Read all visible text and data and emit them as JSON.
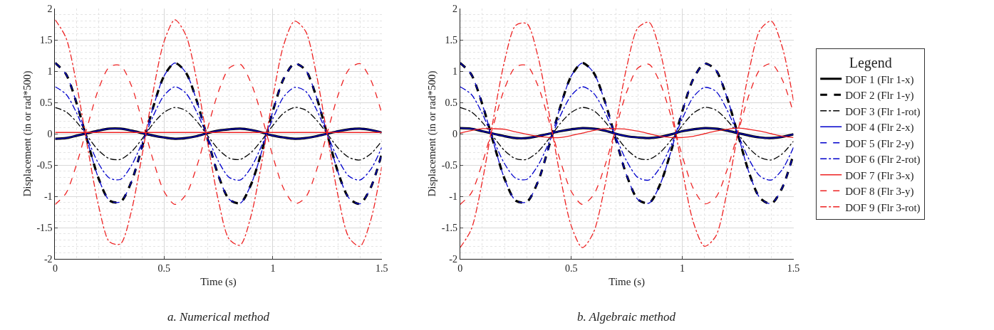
{
  "chart_data": [
    {
      "type": "line",
      "xlabel": "Time (s)",
      "ylabel": "Displacement (in or rad*500)",
      "legend_title": "Legend",
      "legend": "right",
      "grid": true,
      "xlim": [
        0,
        1.5
      ],
      "xticks": [
        0,
        0.5,
        1,
        1.5
      ],
      "ylim": [
        -2,
        2
      ],
      "yticks": [
        -2,
        -1.5,
        -1,
        -0.5,
        0,
        0.5,
        1,
        1.5,
        2
      ],
      "annotations": [
        "a. Numerical method"
      ],
      "x": [
        0,
        0.05,
        0.1,
        0.15,
        0.2,
        0.25,
        0.3,
        0.35,
        0.4,
        0.45,
        0.5,
        0.55,
        0.6,
        0.65,
        0.7,
        0.75,
        0.8,
        0.85,
        0.9,
        0.95,
        1,
        1.05,
        1.1,
        1.15,
        1.2,
        1.25,
        1.3,
        1.35,
        1.4,
        1.45,
        1.5
      ],
      "series": [
        {
          "name": "DOF 1 (Flr 1-x)",
          "color": "#000000",
          "line_style": "solid",
          "values": [
            -0.08,
            -0.07,
            -0.03,
            0.01,
            0.05,
            0.08,
            0.08,
            0.05,
            0.01,
            -0.03,
            -0.06,
            -0.08,
            -0.07,
            -0.04,
            0.01,
            0.05,
            0.07,
            0.08,
            0.06,
            0.02,
            -0.03,
            -0.06,
            -0.08,
            -0.07,
            -0.04,
            0.0,
            0.04,
            0.07,
            0.08,
            0.06,
            0.02
          ]
        },
        {
          "name": "DOF 2 (Flr 1-y)",
          "color": "#000000",
          "line_style": "dashed",
          "values": [
            1.13,
            0.95,
            0.47,
            -0.14,
            -0.72,
            -1.07,
            -1.09,
            -0.77,
            -0.2,
            0.42,
            0.92,
            1.13,
            0.98,
            0.53,
            -0.08,
            -0.67,
            -1.05,
            -1.11,
            -0.81,
            -0.27,
            0.36,
            0.88,
            1.12,
            1.02,
            0.59,
            -0.01,
            -0.62,
            -1.03,
            -1.12,
            -0.86,
            -0.33
          ]
        },
        {
          "name": "DOF 3 (Flr 1-rot)",
          "color": "#000000",
          "line_style": "dashdot",
          "values": [
            0.42,
            0.35,
            0.18,
            -0.05,
            -0.27,
            -0.4,
            -0.41,
            -0.29,
            -0.08,
            0.16,
            0.34,
            0.42,
            0.37,
            0.2,
            -0.03,
            -0.25,
            -0.39,
            -0.41,
            -0.3,
            -0.1,
            0.13,
            0.33,
            0.42,
            0.38,
            0.22,
            0.0,
            -0.23,
            -0.38,
            -0.42,
            -0.32,
            -0.12
          ]
        },
        {
          "name": "DOF 4 (Flr 2-x)",
          "color": "#0000cc",
          "line_style": "solid",
          "values": [
            -0.08,
            -0.07,
            -0.03,
            0.01,
            0.05,
            0.08,
            0.08,
            0.05,
            0.01,
            -0.03,
            -0.06,
            -0.08,
            -0.07,
            -0.04,
            0.01,
            0.05,
            0.07,
            0.08,
            0.06,
            0.02,
            -0.03,
            -0.06,
            -0.08,
            -0.07,
            -0.04,
            0.0,
            0.04,
            0.07,
            0.08,
            0.06,
            0.02
          ]
        },
        {
          "name": "DOF 5 (Flr 2-y)",
          "color": "#0000cc",
          "line_style": "dashed",
          "values": [
            1.13,
            0.95,
            0.47,
            -0.14,
            -0.72,
            -1.07,
            -1.09,
            -0.77,
            -0.2,
            0.42,
            0.92,
            1.13,
            0.98,
            0.53,
            -0.08,
            -0.67,
            -1.05,
            -1.11,
            -0.81,
            -0.27,
            0.36,
            0.88,
            1.12,
            1.02,
            0.59,
            -0.01,
            -0.62,
            -1.03,
            -1.12,
            -0.86,
            -0.33
          ]
        },
        {
          "name": "DOF 6 (Flr 2-rot)",
          "color": "#0000cc",
          "line_style": "dashdot",
          "values": [
            0.75,
            0.63,
            0.32,
            -0.1,
            -0.48,
            -0.71,
            -0.73,
            -0.51,
            -0.14,
            0.28,
            0.61,
            0.75,
            0.65,
            0.35,
            -0.05,
            -0.44,
            -0.7,
            -0.74,
            -0.54,
            -0.18,
            0.24,
            0.59,
            0.74,
            0.68,
            0.39,
            -0.01,
            -0.41,
            -0.68,
            -0.74,
            -0.57,
            -0.22
          ]
        },
        {
          "name": "DOF 7 (Flr 3-x)",
          "color": "#ee2222",
          "line_style": "solid",
          "values": [
            0.02,
            0.02,
            0.02,
            0.02,
            0.02,
            0.02,
            0.02,
            0.02,
            0.02,
            0.02,
            0.02,
            0.02,
            0.02,
            0.02,
            0.02,
            0.02,
            0.02,
            0.02,
            0.02,
            0.02,
            0.02,
            0.02,
            0.02,
            0.02,
            0.02,
            0.02,
            0.02,
            0.02,
            0.02,
            0.02,
            0.02
          ]
        },
        {
          "name": "DOF 8 (Flr 3-y)",
          "color": "#ee2222",
          "line_style": "dashed",
          "values": [
            -1.13,
            -0.95,
            -0.47,
            0.14,
            0.72,
            1.07,
            1.09,
            0.77,
            0.2,
            -0.42,
            -0.92,
            -1.13,
            -0.98,
            -0.53,
            0.08,
            0.67,
            1.05,
            1.11,
            0.81,
            0.27,
            -0.36,
            -0.88,
            -1.12,
            -1.02,
            -0.59,
            0.01,
            0.62,
            1.03,
            1.12,
            0.86,
            0.33
          ]
        },
        {
          "name": "DOF 9 (Flr 3-rot)",
          "color": "#ee2222",
          "line_style": "dashdot",
          "values": [
            1.82,
            1.53,
            0.76,
            -0.24,
            -1.16,
            -1.73,
            -1.76,
            -1.24,
            -0.33,
            0.67,
            1.47,
            1.82,
            1.58,
            0.86,
            -0.13,
            -1.07,
            -1.69,
            -1.78,
            -1.31,
            -0.44,
            0.58,
            1.42,
            1.8,
            1.64,
            0.95,
            -0.02,
            -1.0,
            -1.66,
            -1.8,
            -1.38,
            -0.53
          ]
        }
      ]
    },
    {
      "type": "line",
      "xlabel": "Time (s)",
      "ylabel": "Displacement (in or rad*500)",
      "legend": "right",
      "grid": true,
      "xlim": [
        0,
        1.5
      ],
      "xticks": [
        0,
        0.5,
        1,
        1.5
      ],
      "ylim": [
        -2,
        2
      ],
      "yticks": [
        -2,
        -1.5,
        -1,
        -0.5,
        0,
        0.5,
        1,
        1.5,
        2
      ],
      "annotations": [
        "b. Algebraic method"
      ],
      "x": [
        0,
        0.05,
        0.1,
        0.15,
        0.2,
        0.25,
        0.3,
        0.35,
        0.4,
        0.45,
        0.5,
        0.55,
        0.6,
        0.65,
        0.7,
        0.75,
        0.8,
        0.85,
        0.9,
        0.95,
        1,
        1.05,
        1.1,
        1.15,
        1.2,
        1.25,
        1.3,
        1.35,
        1.4,
        1.45,
        1.5
      ],
      "series": [
        {
          "name": "DOF 1 (Flr 1-x)",
          "color": "#000000",
          "line_style": "solid",
          "values": [
            0.09,
            0.08,
            0.04,
            0.0,
            -0.04,
            -0.07,
            -0.07,
            -0.04,
            0.0,
            0.04,
            0.07,
            0.09,
            0.08,
            0.05,
            0.0,
            -0.04,
            -0.06,
            -0.07,
            -0.05,
            -0.01,
            0.04,
            0.07,
            0.09,
            0.08,
            0.05,
            0.01,
            -0.03,
            -0.06,
            -0.07,
            -0.05,
            -0.01
          ]
        },
        {
          "name": "DOF 2 (Flr 1-y)",
          "color": "#000000",
          "line_style": "dashed",
          "values": [
            1.13,
            0.95,
            0.47,
            -0.14,
            -0.72,
            -1.07,
            -1.09,
            -0.77,
            -0.2,
            0.42,
            0.92,
            1.13,
            0.98,
            0.53,
            -0.08,
            -0.67,
            -1.05,
            -1.11,
            -0.81,
            -0.27,
            0.36,
            0.88,
            1.12,
            1.02,
            0.59,
            -0.01,
            -0.62,
            -1.03,
            -1.12,
            -0.86,
            -0.33
          ]
        },
        {
          "name": "DOF 3 (Flr 1-rot)",
          "color": "#000000",
          "line_style": "dashdot",
          "values": [
            0.42,
            0.35,
            0.18,
            -0.05,
            -0.27,
            -0.4,
            -0.41,
            -0.29,
            -0.08,
            0.16,
            0.34,
            0.42,
            0.37,
            0.2,
            -0.03,
            -0.25,
            -0.39,
            -0.41,
            -0.3,
            -0.1,
            0.13,
            0.33,
            0.42,
            0.38,
            0.22,
            0.0,
            -0.23,
            -0.38,
            -0.42,
            -0.32,
            -0.12
          ]
        },
        {
          "name": "DOF 4 (Flr 2-x)",
          "color": "#0000cc",
          "line_style": "solid",
          "values": [
            0.09,
            0.08,
            0.04,
            0.0,
            -0.04,
            -0.07,
            -0.07,
            -0.04,
            0.0,
            0.04,
            0.07,
            0.09,
            0.08,
            0.05,
            0.0,
            -0.04,
            -0.06,
            -0.07,
            -0.05,
            -0.01,
            0.04,
            0.07,
            0.09,
            0.08,
            0.05,
            0.01,
            -0.03,
            -0.06,
            -0.07,
            -0.05,
            -0.01
          ]
        },
        {
          "name": "DOF 5 (Flr 2-y)",
          "color": "#0000cc",
          "line_style": "dashed",
          "values": [
            1.13,
            0.95,
            0.47,
            -0.14,
            -0.72,
            -1.07,
            -1.09,
            -0.77,
            -0.2,
            0.42,
            0.92,
            1.13,
            0.98,
            0.53,
            -0.08,
            -0.67,
            -1.05,
            -1.11,
            -0.81,
            -0.27,
            0.36,
            0.88,
            1.12,
            1.02,
            0.59,
            -0.01,
            -0.62,
            -1.03,
            -1.12,
            -0.86,
            -0.33
          ]
        },
        {
          "name": "DOF 6 (Flr 2-rot)",
          "color": "#0000cc",
          "line_style": "dashdot",
          "values": [
            0.75,
            0.63,
            0.32,
            -0.1,
            -0.48,
            -0.71,
            -0.73,
            -0.51,
            -0.14,
            0.28,
            0.61,
            0.75,
            0.65,
            0.35,
            -0.05,
            -0.44,
            -0.7,
            -0.74,
            -0.54,
            -0.18,
            0.24,
            0.59,
            0.74,
            0.68,
            0.39,
            -0.01,
            -0.41,
            -0.68,
            -0.74,
            -0.57,
            -0.22
          ]
        },
        {
          "name": "DOF 7 (Flr 3-x)",
          "color": "#ee2222",
          "line_style": "solid",
          "values": [
            0.01,
            0.05,
            0.08,
            0.08,
            0.07,
            0.03,
            -0.01,
            -0.04,
            -0.06,
            -0.06,
            -0.03,
            0.01,
            0.05,
            0.08,
            0.08,
            0.07,
            0.04,
            0.0,
            -0.04,
            -0.06,
            -0.06,
            -0.04,
            0.0,
            0.04,
            0.07,
            0.09,
            0.07,
            0.04,
            0.0,
            -0.04,
            -0.06
          ]
        },
        {
          "name": "DOF 8 (Flr 3-y)",
          "color": "#ee2222",
          "line_style": "dashed",
          "values": [
            -1.13,
            -0.95,
            -0.47,
            0.14,
            0.72,
            1.07,
            1.09,
            0.77,
            0.2,
            -0.42,
            -0.92,
            -1.13,
            -0.98,
            -0.53,
            0.08,
            0.67,
            1.05,
            1.11,
            0.81,
            0.27,
            -0.36,
            -0.88,
            -1.12,
            -1.02,
            -0.59,
            0.01,
            0.62,
            1.03,
            1.12,
            0.86,
            0.33
          ]
        },
        {
          "name": "DOF 9 (Flr 3-rot)",
          "color": "#ee2222",
          "line_style": "dashdot",
          "values": [
            -1.82,
            -1.53,
            -0.76,
            0.24,
            1.16,
            1.73,
            1.76,
            1.24,
            0.33,
            -0.67,
            -1.47,
            -1.82,
            -1.58,
            -0.86,
            0.13,
            1.07,
            1.69,
            1.78,
            1.31,
            0.44,
            -0.58,
            -1.42,
            -1.8,
            -1.64,
            -0.95,
            0.02,
            1.0,
            1.66,
            1.8,
            1.38,
            0.53
          ]
        }
      ]
    }
  ]
}
